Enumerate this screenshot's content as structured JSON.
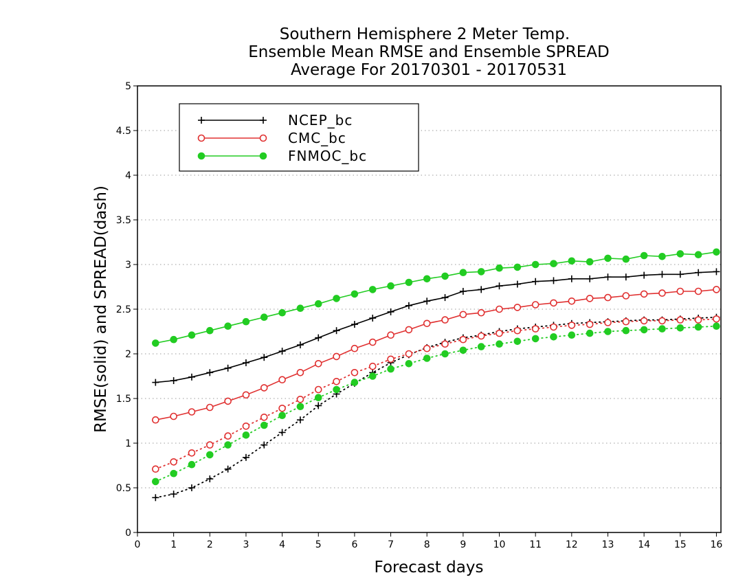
{
  "chart_data": {
    "type": "line",
    "title": [
      "Southern Hemisphere 2 Meter Temp.",
      "Ensemble Mean RMSE and Ensemble SPREAD",
      "Average For 20170301 - 20170531"
    ],
    "xlabel": "Forecast days",
    "ylabel": "RMSE(solid) and SPREAD(dash)",
    "xlim": [
      0,
      16.125
    ],
    "ylim": [
      0,
      5
    ],
    "x_ticks": [
      "0",
      "1",
      "2",
      "3",
      "4",
      "5",
      "6",
      "7",
      "8",
      "9",
      "10",
      "11",
      "12",
      "13",
      "14",
      "15",
      "16"
    ],
    "y_ticks": [
      "0",
      "0.5",
      "1",
      "1.5",
      "2",
      "2.5",
      "3",
      "3.5",
      "4",
      "4.5",
      "5"
    ],
    "grid": "horizontal-dotted",
    "legend_position": "top-left",
    "x": [
      0.5,
      1,
      1.5,
      2,
      2.5,
      3,
      3.5,
      4,
      4.5,
      5,
      5.5,
      6,
      6.5,
      7,
      7.5,
      8,
      8.5,
      9,
      9.5,
      10,
      10.5,
      11,
      11.5,
      12,
      12.5,
      13,
      13.5,
      14,
      14.5,
      15,
      15.5,
      16
    ],
    "series": [
      {
        "name": "NCEP_bc",
        "color": "#000000",
        "marker": "plus",
        "rmse": [
          1.68,
          1.7,
          1.74,
          1.79,
          1.84,
          1.9,
          1.96,
          2.03,
          2.1,
          2.18,
          2.26,
          2.33,
          2.4,
          2.47,
          2.54,
          2.59,
          2.63,
          2.7,
          2.72,
          2.76,
          2.78,
          2.81,
          2.82,
          2.84,
          2.84,
          2.86,
          2.86,
          2.88,
          2.89,
          2.89,
          2.91,
          2.92
        ],
        "spread": [
          0.39,
          0.43,
          0.5,
          0.6,
          0.71,
          0.84,
          0.98,
          1.12,
          1.26,
          1.42,
          1.55,
          1.67,
          1.79,
          1.9,
          1.99,
          2.07,
          2.13,
          2.18,
          2.21,
          2.25,
          2.28,
          2.3,
          2.32,
          2.34,
          2.35,
          2.36,
          2.37,
          2.38,
          2.38,
          2.39,
          2.4,
          2.41
        ]
      },
      {
        "name": "CMC_bc",
        "color": "#e03030",
        "marker": "open-circle",
        "rmse": [
          1.26,
          1.3,
          1.35,
          1.4,
          1.47,
          1.54,
          1.62,
          1.71,
          1.79,
          1.89,
          1.97,
          2.06,
          2.13,
          2.21,
          2.27,
          2.34,
          2.38,
          2.44,
          2.46,
          2.5,
          2.52,
          2.55,
          2.57,
          2.59,
          2.62,
          2.63,
          2.65,
          2.67,
          2.68,
          2.7,
          2.7,
          2.72
        ],
        "spread": [
          0.71,
          0.79,
          0.89,
          0.98,
          1.08,
          1.19,
          1.29,
          1.39,
          1.49,
          1.6,
          1.69,
          1.79,
          1.86,
          1.94,
          2.0,
          2.06,
          2.11,
          2.16,
          2.2,
          2.23,
          2.26,
          2.28,
          2.3,
          2.32,
          2.33,
          2.35,
          2.36,
          2.37,
          2.37,
          2.38,
          2.38,
          2.39
        ]
      },
      {
        "name": "FNMOC_bc",
        "color": "#22cc22",
        "marker": "filled-circle",
        "rmse": [
          2.12,
          2.16,
          2.21,
          2.26,
          2.31,
          2.36,
          2.41,
          2.46,
          2.51,
          2.56,
          2.62,
          2.67,
          2.72,
          2.76,
          2.8,
          2.84,
          2.87,
          2.91,
          2.92,
          2.96,
          2.97,
          3.0,
          3.01,
          3.04,
          3.03,
          3.07,
          3.06,
          3.1,
          3.09,
          3.12,
          3.11,
          3.14
        ],
        "spread": [
          0.57,
          0.66,
          0.76,
          0.87,
          0.98,
          1.09,
          1.2,
          1.31,
          1.41,
          1.51,
          1.6,
          1.68,
          1.75,
          1.83,
          1.89,
          1.95,
          2.0,
          2.04,
          2.08,
          2.11,
          2.14,
          2.17,
          2.19,
          2.21,
          2.23,
          2.25,
          2.26,
          2.27,
          2.28,
          2.29,
          2.3,
          2.31
        ]
      }
    ]
  }
}
